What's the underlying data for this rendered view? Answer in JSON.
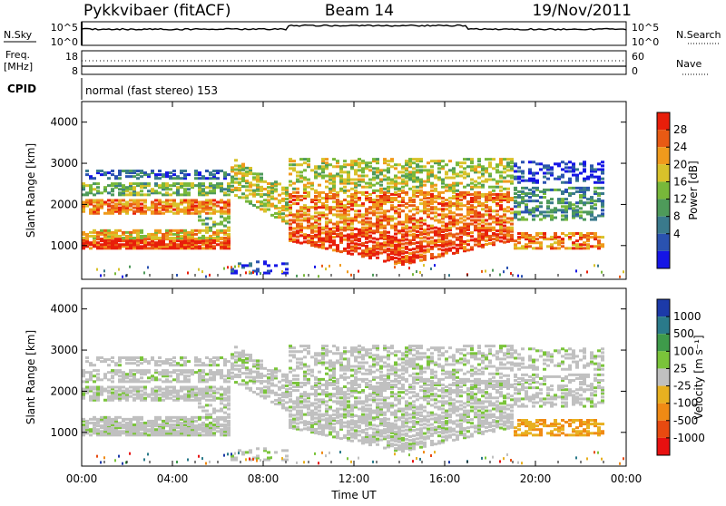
{
  "header": {
    "title": "Pykkvibaer (fitACF)",
    "beam": "Beam 14",
    "date": "19/Nov/2011"
  },
  "summary_panels": {
    "nsky_label": "N.Sky",
    "nsearch_label": "N.Search",
    "nsky_ticks": [
      "10^5",
      "10^0"
    ],
    "nsearch_ticks": [
      "10^5",
      "10^0"
    ],
    "freq_label_1": "Freq.",
    "freq_label_2": "[MHz]",
    "freq_ticks": [
      "18",
      "8"
    ],
    "nave_label": "Nave",
    "nave_ticks": [
      "60",
      "0"
    ],
    "cpid_label": "CPID",
    "cpid_value": "normal (fast stereo) 153"
  },
  "chart_data": [
    {
      "type": "heatmap",
      "name": "power",
      "ylabel": "Slant Range [km]",
      "xlabel": "Time UT",
      "ylim": [
        180,
        4500
      ],
      "y_ticks": [
        1000,
        2000,
        3000,
        4000
      ],
      "x_ticks_hours": [
        0,
        4,
        8,
        12,
        16,
        20,
        24
      ],
      "x_tick_labels": [
        "00:00",
        "04:00",
        "08:00",
        "12:00",
        "16:00",
        "20:00",
        "00:00"
      ],
      "colorbar": {
        "label": "Power [dB]",
        "tick_labels": [
          "4",
          "8",
          "12",
          "16",
          "20",
          "24",
          "28"
        ],
        "colors": [
          "#1515e6",
          "#2a52b0",
          "#3a7a8c",
          "#4e9a5a",
          "#78b83a",
          "#d8c22a",
          "#f09a1c",
          "#e85a14",
          "#e81e0a"
        ]
      }
    },
    {
      "type": "heatmap",
      "name": "velocity",
      "ylabel": "Slant Range [km]",
      "xlabel": "Time UT",
      "ylim": [
        180,
        4500
      ],
      "y_ticks": [
        1000,
        2000,
        3000,
        4000
      ],
      "x_ticks_hours": [
        0,
        4,
        8,
        12,
        16,
        20,
        24
      ],
      "x_tick_labels": [
        "00:00",
        "04:00",
        "08:00",
        "12:00",
        "16:00",
        "20:00",
        "00:00"
      ],
      "colorbar": {
        "label": "Velocity [m s⁻¹]",
        "tick_labels": [
          "1000",
          "500",
          "100",
          "25",
          "-25",
          "-100",
          "-500",
          "-1000"
        ],
        "colors": [
          "#1c3aa8",
          "#2a7a8a",
          "#3e9a4a",
          "#7ac43a",
          "#c0c0c0",
          "#e8b020",
          "#f08a14",
          "#e84a10",
          "#e81010"
        ]
      }
    }
  ]
}
